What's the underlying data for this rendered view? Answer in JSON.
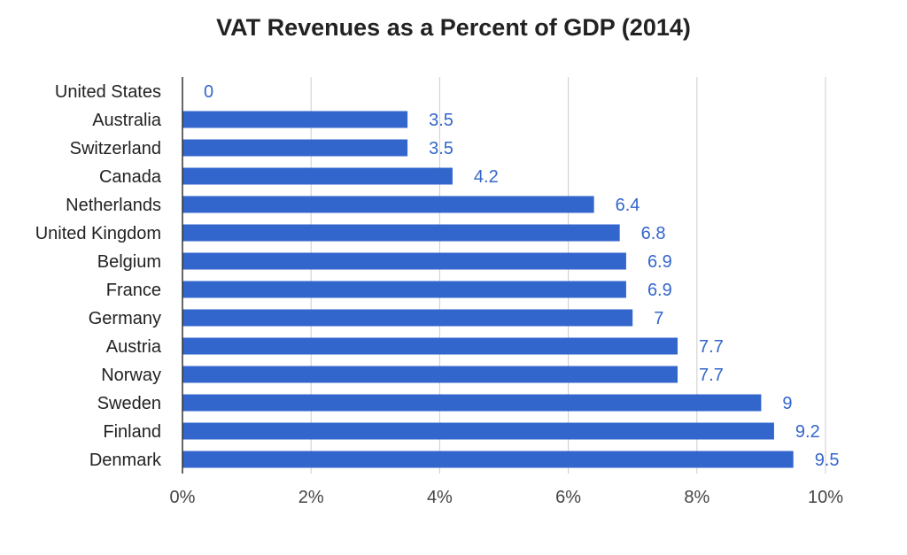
{
  "colors": {
    "bar": "#3366cc",
    "data_label": "#3366cc",
    "grid": "#cccccc",
    "axis": "#333333"
  },
  "chart_data": {
    "type": "bar",
    "orientation": "horizontal",
    "title": "VAT Revenues as a Percent of GDP (2014)",
    "xlabel": "",
    "ylabel": "",
    "categories": [
      "United States",
      "Australia",
      "Switzerland",
      "Canada",
      "Netherlands",
      "United Kingdom",
      "Belgium",
      "France",
      "Germany",
      "Austria",
      "Norway",
      "Sweden",
      "Finland",
      "Denmark"
    ],
    "values": [
      0,
      3.5,
      3.5,
      4.2,
      6.4,
      6.8,
      6.9,
      6.9,
      7,
      7.7,
      7.7,
      9,
      9.2,
      9.5
    ],
    "data_labels": [
      "0",
      "3.5",
      "3.5",
      "4.2",
      "6.4",
      "6.8",
      "6.9",
      "6.9",
      "7",
      "7.7",
      "7.7",
      "9",
      "9.2",
      "9.5"
    ],
    "xlim": [
      0,
      10
    ],
    "x_ticks": [
      0,
      2,
      4,
      6,
      8,
      10
    ],
    "x_tick_labels": [
      "0%",
      "2%",
      "4%",
      "6%",
      "8%",
      "10%"
    ],
    "grid": true,
    "legend": "none"
  }
}
